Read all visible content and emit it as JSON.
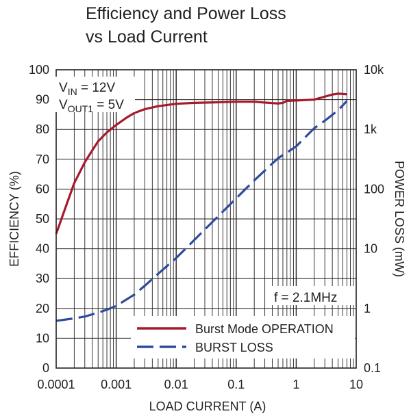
{
  "chart_data": {
    "type": "line",
    "title_line1": "Efficiency and Power Loss",
    "title_line2": "vs Load Current",
    "xlabel": "LOAD CURRENT (A)",
    "ylabel_left": "EFFICIENCY (%)",
    "ylabel_right": "POWER LOSS (mW)",
    "x_scale": "log",
    "xlim": [
      0.0001,
      10
    ],
    "ylim_left": [
      0,
      100
    ],
    "ylim_right": [
      0.1,
      10000
    ],
    "x_ticks": [
      {
        "value": 0.0001,
        "label": "0.0001"
      },
      {
        "value": 0.001,
        "label": "0.001"
      },
      {
        "value": 0.01,
        "label": "0.01"
      },
      {
        "value": 0.1,
        "label": "0.1"
      },
      {
        "value": 1,
        "label": "1"
      },
      {
        "value": 10,
        "label": "10"
      }
    ],
    "y_left_ticks": [
      {
        "value": 0,
        "label": "0"
      },
      {
        "value": 10,
        "label": "10"
      },
      {
        "value": 20,
        "label": "20"
      },
      {
        "value": 30,
        "label": "30"
      },
      {
        "value": 40,
        "label": "40"
      },
      {
        "value": 50,
        "label": "50"
      },
      {
        "value": 60,
        "label": "60"
      },
      {
        "value": 70,
        "label": "70"
      },
      {
        "value": 80,
        "label": "80"
      },
      {
        "value": 90,
        "label": "90"
      },
      {
        "value": 100,
        "label": "100"
      }
    ],
    "y_right_ticks": [
      {
        "value": 0.1,
        "label": "0.1"
      },
      {
        "value": 1,
        "label": "1"
      },
      {
        "value": 10,
        "label": "10"
      },
      {
        "value": 100,
        "label": "100"
      },
      {
        "value": 1000,
        "label": "1k"
      },
      {
        "value": 10000,
        "label": "10k"
      }
    ],
    "annotations": {
      "vin_main": "V",
      "vin_sub": "IN",
      "vin_value": " = 12V",
      "vout_main": "V",
      "vout_sub": "OUT1",
      "vout_value": " = 5V",
      "freq": "f = 2.1MHz"
    },
    "series": [
      {
        "name": "Burst Mode OPERATION",
        "axis": "left",
        "color": "#a6192e",
        "dash": "solid",
        "points": [
          [
            0.0001,
            45
          ],
          [
            0.00015,
            55
          ],
          [
            0.0002,
            62
          ],
          [
            0.0003,
            69
          ],
          [
            0.0004,
            73
          ],
          [
            0.0005,
            76
          ],
          [
            0.0007,
            79
          ],
          [
            0.001,
            81.5
          ],
          [
            0.0015,
            84
          ],
          [
            0.002,
            85.5
          ],
          [
            0.003,
            86.8
          ],
          [
            0.005,
            87.8
          ],
          [
            0.01,
            88.6
          ],
          [
            0.02,
            88.9
          ],
          [
            0.05,
            89.1
          ],
          [
            0.1,
            89.3
          ],
          [
            0.2,
            89.3
          ],
          [
            0.3,
            89
          ],
          [
            0.5,
            88.7
          ],
          [
            0.6,
            88.9
          ],
          [
            0.7,
            89.6
          ],
          [
            1,
            89.7
          ],
          [
            2,
            90
          ],
          [
            3,
            91
          ],
          [
            4,
            91.7
          ],
          [
            5,
            92
          ],
          [
            7,
            91.8
          ]
        ]
      },
      {
        "name": "BURST LOSS",
        "axis": "right",
        "color": "#2e4a9e",
        "dash": "dashed",
        "points": [
          [
            0.0001,
            0.62
          ],
          [
            0.0002,
            0.68
          ],
          [
            0.0003,
            0.73
          ],
          [
            0.0005,
            0.85
          ],
          [
            0.0007,
            0.95
          ],
          [
            0.001,
            1.1
          ],
          [
            0.002,
            1.7
          ],
          [
            0.003,
            2.4
          ],
          [
            0.005,
            3.8
          ],
          [
            0.01,
            7
          ],
          [
            0.02,
            14
          ],
          [
            0.05,
            35
          ],
          [
            0.1,
            70
          ],
          [
            0.2,
            140
          ],
          [
            0.5,
            330
          ],
          [
            0.7,
            410
          ],
          [
            1,
            520
          ],
          [
            2,
            1050
          ],
          [
            3,
            1400
          ],
          [
            5,
            2100
          ],
          [
            7,
            3000
          ]
        ]
      }
    ]
  }
}
